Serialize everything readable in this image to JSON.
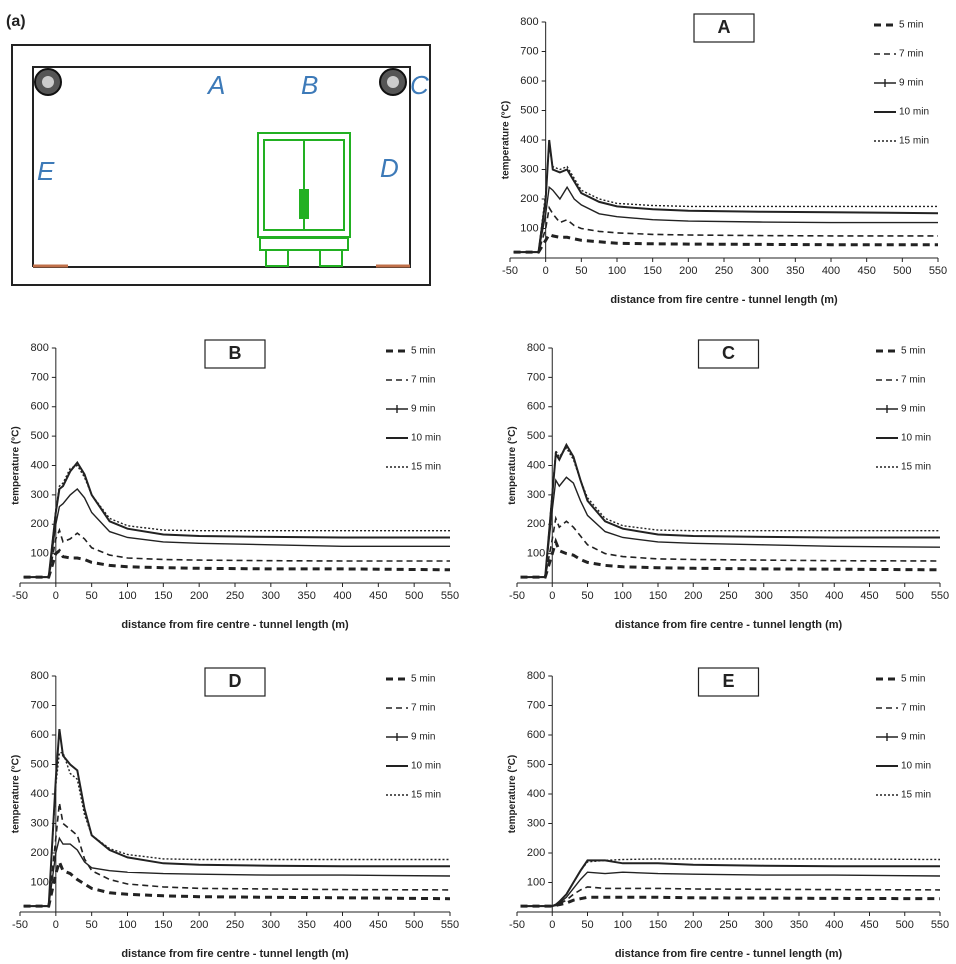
{
  "figure_label": "(a)",
  "diagram": {
    "labels": [
      "A",
      "B",
      "C",
      "D",
      "E"
    ]
  },
  "chart_data": [
    {
      "type": "line",
      "title": "A",
      "xlabel": "distance from fire centre - tunnel length (m)",
      "ylabel": "temperature (°C)",
      "xlim": [
        -50,
        550
      ],
      "ylim": [
        0,
        800
      ],
      "xticks": [
        -50,
        0,
        50,
        100,
        150,
        200,
        250,
        300,
        350,
        400,
        450,
        500,
        550
      ],
      "yticks": [
        100,
        200,
        300,
        400,
        500,
        600,
        700,
        800
      ],
      "x": [
        -45,
        -30,
        -10,
        0,
        5,
        10,
        20,
        30,
        40,
        50,
        75,
        100,
        150,
        200,
        300,
        400,
        550
      ],
      "series": [
        {
          "name": "5 min",
          "color": "#222222",
          "style": "long-dash",
          "values": [
            20,
            20,
            20,
            60,
            80,
            75,
            70,
            70,
            65,
            60,
            55,
            50,
            48,
            47,
            46,
            45,
            45
          ]
        },
        {
          "name": "7 min",
          "color": "#222222",
          "style": "dash",
          "values": [
            20,
            20,
            20,
            100,
            170,
            150,
            120,
            130,
            110,
            100,
            90,
            85,
            80,
            78,
            76,
            75,
            75
          ]
        },
        {
          "name": "9 min",
          "color": "#222222",
          "style": "marked",
          "values": [
            20,
            20,
            20,
            150,
            240,
            230,
            200,
            240,
            200,
            180,
            150,
            140,
            130,
            125,
            122,
            120,
            120
          ]
        },
        {
          "name": "10 min",
          "color": "#222222",
          "style": "solid",
          "values": [
            20,
            20,
            20,
            200,
            400,
            300,
            290,
            300,
            260,
            220,
            190,
            175,
            165,
            160,
            157,
            155,
            152
          ]
        },
        {
          "name": "15 min",
          "color": "#222222",
          "style": "dotted",
          "values": [
            20,
            20,
            20,
            220,
            380,
            310,
            300,
            310,
            270,
            230,
            200,
            185,
            178,
            175,
            175,
            175,
            175
          ]
        }
      ]
    },
    {
      "type": "line",
      "title": "B",
      "xlabel": "distance from fire centre - tunnel length (m)",
      "ylabel": "temperature (°C)",
      "xlim": [
        -50,
        550
      ],
      "ylim": [
        0,
        800
      ],
      "xticks": [
        -50,
        0,
        50,
        100,
        150,
        200,
        250,
        300,
        350,
        400,
        450,
        500,
        550
      ],
      "yticks": [
        100,
        200,
        300,
        400,
        500,
        600,
        700,
        800
      ],
      "x": [
        -45,
        -30,
        -10,
        0,
        5,
        10,
        20,
        30,
        40,
        50,
        75,
        100,
        150,
        200,
        300,
        400,
        550
      ],
      "series": [
        {
          "name": "5 min",
          "color": "#222222",
          "style": "long-dash",
          "values": [
            20,
            20,
            20,
            100,
            110,
            90,
            85,
            85,
            80,
            70,
            60,
            55,
            52,
            50,
            48,
            48,
            45
          ]
        },
        {
          "name": "7 min",
          "color": "#222222",
          "style": "dash",
          "values": [
            20,
            20,
            20,
            150,
            180,
            140,
            150,
            170,
            150,
            120,
            95,
            85,
            80,
            78,
            76,
            75,
            75
          ]
        },
        {
          "name": "9 min",
          "color": "#222222",
          "style": "marked",
          "values": [
            20,
            20,
            20,
            200,
            260,
            270,
            300,
            320,
            290,
            240,
            175,
            155,
            140,
            135,
            130,
            125,
            125
          ]
        },
        {
          "name": "10 min",
          "color": "#222222",
          "style": "solid",
          "values": [
            20,
            20,
            20,
            240,
            320,
            330,
            380,
            410,
            370,
            300,
            210,
            185,
            165,
            160,
            157,
            155,
            155
          ]
        },
        {
          "name": "15 min",
          "color": "#222222",
          "style": "dotted",
          "values": [
            20,
            20,
            20,
            250,
            330,
            340,
            390,
            400,
            360,
            300,
            220,
            195,
            180,
            178,
            178,
            178,
            178
          ]
        }
      ]
    },
    {
      "type": "line",
      "title": "C",
      "xlabel": "distance from fire centre - tunnel length (m)",
      "ylabel": "temperature (°C)",
      "xlim": [
        -50,
        550
      ],
      "ylim": [
        0,
        800
      ],
      "xticks": [
        -50,
        0,
        50,
        100,
        150,
        200,
        250,
        300,
        350,
        400,
        450,
        500,
        550
      ],
      "yticks": [
        100,
        200,
        300,
        400,
        500,
        600,
        700,
        800
      ],
      "x": [
        -45,
        -30,
        -10,
        0,
        5,
        10,
        20,
        30,
        40,
        50,
        75,
        100,
        150,
        200,
        300,
        400,
        550
      ],
      "series": [
        {
          "name": "5 min",
          "color": "#222222",
          "style": "long-dash",
          "values": [
            20,
            20,
            20,
            100,
            140,
            110,
            100,
            95,
            80,
            70,
            60,
            55,
            52,
            50,
            48,
            47,
            45
          ]
        },
        {
          "name": "7 min",
          "color": "#222222",
          "style": "dash",
          "values": [
            20,
            20,
            20,
            150,
            220,
            190,
            210,
            190,
            160,
            130,
            100,
            90,
            82,
            80,
            78,
            76,
            75
          ]
        },
        {
          "name": "9 min",
          "color": "#222222",
          "style": "marked",
          "values": [
            20,
            20,
            20,
            250,
            350,
            330,
            360,
            340,
            280,
            230,
            175,
            155,
            140,
            135,
            130,
            125,
            122
          ]
        },
        {
          "name": "10 min",
          "color": "#222222",
          "style": "solid",
          "values": [
            20,
            20,
            20,
            300,
            440,
            420,
            470,
            430,
            350,
            280,
            210,
            185,
            165,
            160,
            157,
            155,
            155
          ]
        },
        {
          "name": "15 min",
          "color": "#222222",
          "style": "dotted",
          "values": [
            20,
            20,
            20,
            310,
            450,
            430,
            460,
            420,
            350,
            290,
            220,
            195,
            180,
            178,
            178,
            178,
            178
          ]
        }
      ]
    },
    {
      "type": "line",
      "title": "D",
      "xlabel": "distance from fire centre - tunnel length (m)",
      "ylabel": "temperature (°C)",
      "xlim": [
        -50,
        550
      ],
      "ylim": [
        0,
        800
      ],
      "xticks": [
        -50,
        0,
        50,
        100,
        150,
        200,
        250,
        300,
        350,
        400,
        450,
        500,
        550
      ],
      "yticks": [
        100,
        200,
        300,
        400,
        500,
        600,
        700,
        800
      ],
      "x": [
        -45,
        -30,
        -10,
        0,
        5,
        10,
        20,
        30,
        40,
        50,
        75,
        100,
        150,
        200,
        300,
        400,
        550
      ],
      "series": [
        {
          "name": "5 min",
          "color": "#222222",
          "style": "long-dash",
          "values": [
            20,
            20,
            20,
            130,
            170,
            140,
            130,
            110,
            95,
            80,
            65,
            60,
            55,
            52,
            50,
            48,
            45
          ]
        },
        {
          "name": "7 min",
          "color": "#222222",
          "style": "dash",
          "values": [
            20,
            20,
            20,
            250,
            370,
            300,
            280,
            260,
            180,
            140,
            110,
            95,
            85,
            80,
            78,
            76,
            75
          ]
        },
        {
          "name": "9 min",
          "color": "#222222",
          "style": "marked",
          "values": [
            20,
            20,
            20,
            200,
            250,
            230,
            230,
            210,
            170,
            150,
            140,
            135,
            130,
            128,
            125,
            125,
            122
          ]
        },
        {
          "name": "10 min",
          "color": "#222222",
          "style": "solid",
          "values": [
            20,
            20,
            20,
            450,
            620,
            530,
            500,
            480,
            350,
            260,
            210,
            185,
            165,
            160,
            157,
            155,
            155
          ]
        },
        {
          "name": "15 min",
          "color": "#222222",
          "style": "dotted",
          "values": [
            20,
            20,
            20,
            430,
            540,
            540,
            470,
            450,
            330,
            260,
            215,
            195,
            180,
            178,
            178,
            178,
            178
          ]
        }
      ]
    },
    {
      "type": "line",
      "title": "E",
      "xlabel": "distance from fire centre - tunnel length (m)",
      "ylabel": "temperature (°C)",
      "xlim": [
        -50,
        550
      ],
      "ylim": [
        0,
        800
      ],
      "xticks": [
        -50,
        0,
        50,
        100,
        150,
        200,
        250,
        300,
        350,
        400,
        450,
        500,
        550
      ],
      "yticks": [
        100,
        200,
        300,
        400,
        500,
        600,
        700,
        800
      ],
      "x": [
        -45,
        -30,
        -10,
        0,
        5,
        10,
        20,
        30,
        40,
        50,
        75,
        100,
        150,
        200,
        300,
        400,
        550
      ],
      "series": [
        {
          "name": "5 min",
          "color": "#222222",
          "style": "long-dash",
          "values": [
            20,
            20,
            20,
            20,
            22,
            25,
            30,
            40,
            45,
            50,
            50,
            50,
            50,
            48,
            47,
            46,
            45
          ]
        },
        {
          "name": "7 min",
          "color": "#222222",
          "style": "dash",
          "values": [
            20,
            20,
            20,
            20,
            22,
            28,
            40,
            60,
            75,
            85,
            80,
            80,
            80,
            78,
            77,
            76,
            75
          ]
        },
        {
          "name": "9 min",
          "color": "#222222",
          "style": "marked",
          "values": [
            20,
            20,
            20,
            20,
            25,
            30,
            50,
            80,
            110,
            135,
            130,
            135,
            130,
            128,
            125,
            125,
            122
          ]
        },
        {
          "name": "10 min",
          "color": "#222222",
          "style": "solid",
          "values": [
            20,
            20,
            20,
            20,
            25,
            35,
            60,
            100,
            140,
            175,
            175,
            165,
            165,
            160,
            157,
            155,
            155
          ]
        },
        {
          "name": "15 min",
          "color": "#222222",
          "style": "dotted",
          "values": [
            20,
            20,
            20,
            20,
            25,
            35,
            60,
            100,
            140,
            170,
            175,
            178,
            180,
            180,
            180,
            180,
            178
          ]
        }
      ]
    }
  ]
}
